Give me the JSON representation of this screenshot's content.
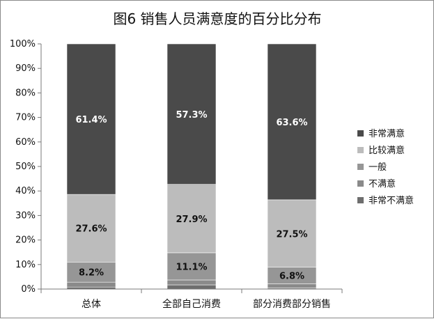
{
  "chart_data": {
    "type": "bar",
    "stacked": true,
    "title": "图6  销售人员满意度的百分比分布",
    "categories": [
      "总体",
      "全部自己消费",
      "部分消费部分销售"
    ],
    "yticks": [
      "0%",
      "10%",
      "20%",
      "30%",
      "40%",
      "50%",
      "60%",
      "70%",
      "80%",
      "90%",
      "100%"
    ],
    "ylim": [
      0,
      100
    ],
    "legend_position": "right",
    "series": [
      {
        "name": "非常不满意",
        "color": "#6e6e6e",
        "values": [
          0.8,
          1.7,
          0.4
        ],
        "labels": [
          "",
          "",
          ""
        ],
        "label_color": "#111111"
      },
      {
        "name": "不满意",
        "color": "#8a8a8a",
        "values": [
          2.0,
          2.0,
          1.7
        ],
        "labels": [
          "",
          "",
          ""
        ],
        "label_color": "#111111"
      },
      {
        "name": "一般",
        "color": "#969696",
        "values": [
          8.2,
          11.1,
          6.8
        ],
        "labels": [
          "8.2%",
          "11.1%",
          "6.8%"
        ],
        "label_color": "#111111"
      },
      {
        "name": "比较满意",
        "color": "#bcbcbc",
        "values": [
          27.6,
          27.9,
          27.5
        ],
        "labels": [
          "27.6%",
          "27.9%",
          "27.5%"
        ],
        "label_color": "#111111"
      },
      {
        "name": "非常满意",
        "color": "#4a4a4a",
        "values": [
          61.4,
          57.3,
          63.6
        ],
        "labels": [
          "61.4%",
          "57.3%",
          "63.6%"
        ],
        "label_color": "#ffffff"
      }
    ],
    "legend_order": [
      "非常满意",
      "比较满意",
      "一般",
      "不满意",
      "非常不满意"
    ]
  }
}
